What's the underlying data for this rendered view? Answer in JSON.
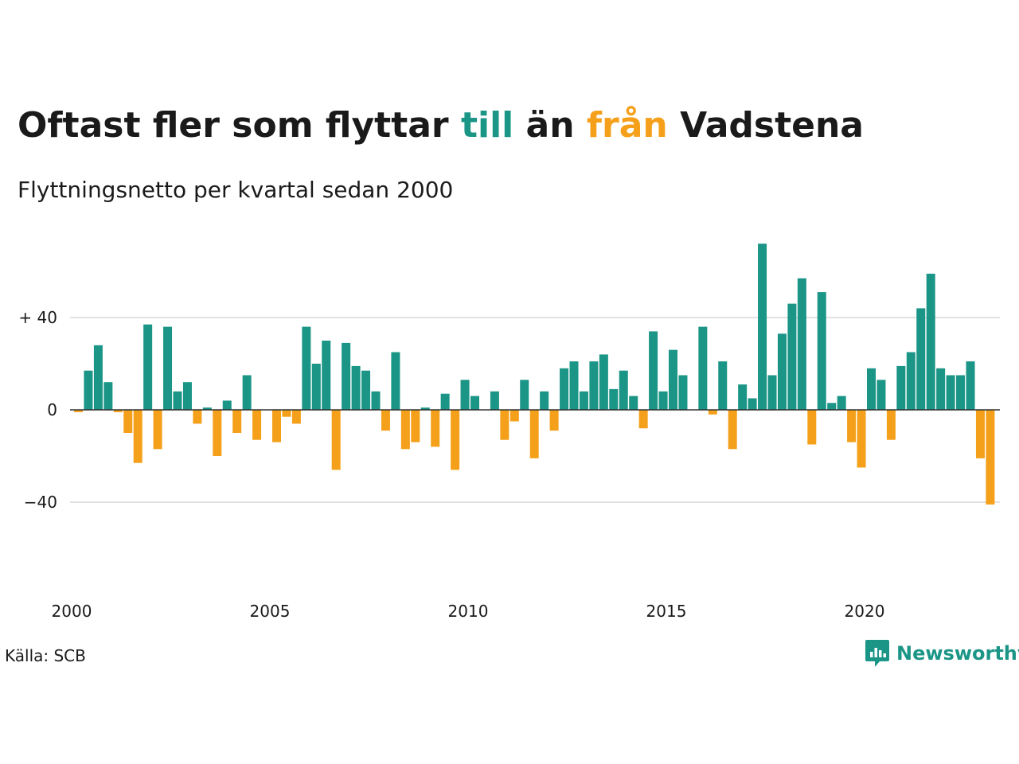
{
  "title": {
    "part1": "Oftast fler som flyttar ",
    "pos_word": "till",
    "part2": " än ",
    "neg_word": "från",
    "part3": " Vadstena"
  },
  "subtitle": "Flyttningsnetto per kvartal sedan 2000",
  "source": "Källa: SCB",
  "logo": {
    "text": "Newsworthy",
    "icon": "newsworthy-chart-bubble-icon"
  },
  "colors": {
    "positive": "#1a9586",
    "negative": "#f5a01a",
    "grid": "#e2e2e2",
    "baseline": "#333333",
    "text": "#1a1a1a"
  },
  "chart_data": {
    "type": "bar",
    "title": "Oftast fler som flyttar till än från Vadstena",
    "subtitle": "Flyttningsnetto per kvartal sedan 2000",
    "xlabel": "",
    "ylabel": "",
    "ylim": [
      -70,
      75
    ],
    "yticks": [
      {
        "value": 40,
        "label": "+ 40"
      },
      {
        "value": 0,
        "label": "0"
      },
      {
        "value": -40,
        "label": "−40"
      }
    ],
    "xticks": [
      {
        "year": 2000,
        "label": "2000"
      },
      {
        "year": 2005,
        "label": "2005"
      },
      {
        "year": 2010,
        "label": "2010"
      },
      {
        "year": 2015,
        "label": "2015"
      },
      {
        "year": 2020,
        "label": "2020"
      }
    ],
    "start_year": 2000,
    "frequency": "quarterly",
    "grid": true,
    "legend": "none",
    "values": [
      -1,
      17,
      28,
      12,
      -1,
      -10,
      -23,
      37,
      -17,
      36,
      8,
      12,
      -6,
      1,
      -20,
      4,
      -10,
      15,
      -13,
      0,
      -14,
      -3,
      -6,
      36,
      20,
      30,
      -26,
      29,
      19,
      17,
      8,
      -9,
      25,
      -17,
      -14,
      1,
      -16,
      7,
      -26,
      13,
      6,
      0,
      8,
      -13,
      -5,
      13,
      -21,
      8,
      -9,
      18,
      21,
      8,
      21,
      24,
      9,
      17,
      6,
      -8,
      34,
      8,
      26,
      15,
      0,
      36,
      -2,
      21,
      -17,
      11,
      5,
      72,
      15,
      33,
      46,
      57,
      -15,
      51,
      3,
      6,
      -14,
      -25,
      18,
      13,
      -13,
      19,
      25,
      44,
      59,
      18,
      15,
      15,
      21,
      -21,
      -41
    ]
  }
}
